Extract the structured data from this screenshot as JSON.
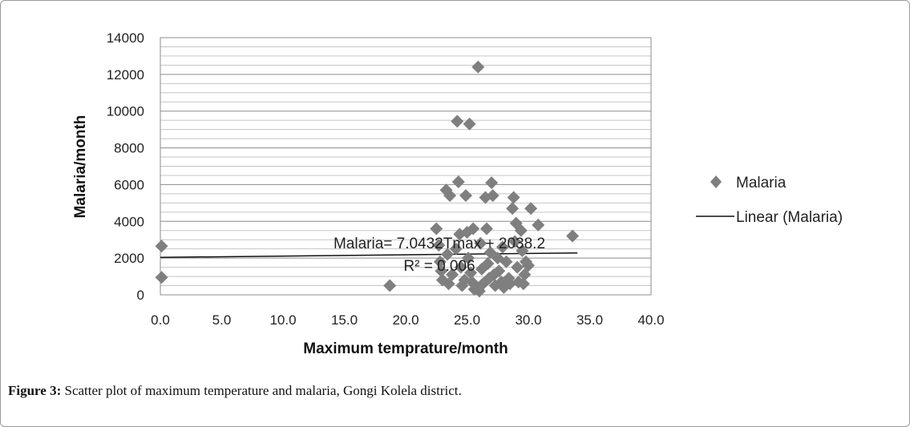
{
  "chart_data": {
    "type": "scatter",
    "xlabel": "Maximum temprature/month",
    "ylabel": "Malaria/month",
    "xlim": [
      0,
      40
    ],
    "ylim": [
      0,
      14000
    ],
    "x_ticks": [
      "0.0",
      "5.0",
      "10.0",
      "15.0",
      "20.0",
      "25.0",
      "30.0",
      "35.0",
      "40.0"
    ],
    "y_ticks": [
      "0",
      "2000",
      "4000",
      "6000",
      "8000",
      "10000",
      "12000",
      "14000"
    ],
    "grid": "horizontal",
    "legend_position": "right",
    "legend": {
      "series_label": "Malaria",
      "trend_label": "Linear (Malaria)"
    },
    "marker_color": "#7f7f7f",
    "series": [
      {
        "name": "Malaria",
        "points": [
          [
            0.1,
            2650
          ],
          [
            0.1,
            950
          ],
          [
            18.7,
            500
          ],
          [
            22.5,
            3600
          ],
          [
            22.7,
            2700
          ],
          [
            22.8,
            1800
          ],
          [
            23.0,
            800
          ],
          [
            22.9,
            1300
          ],
          [
            23.3,
            5700
          ],
          [
            23.6,
            5400
          ],
          [
            23.4,
            2200
          ],
          [
            23.5,
            600
          ],
          [
            23.8,
            1100
          ],
          [
            24.2,
            9450
          ],
          [
            24.3,
            6150
          ],
          [
            24.1,
            2500
          ],
          [
            24.4,
            3300
          ],
          [
            24.5,
            1500
          ],
          [
            24.6,
            500
          ],
          [
            24.8,
            800
          ],
          [
            24.9,
            5400
          ],
          [
            25.0,
            3400
          ],
          [
            25.1,
            2000
          ],
          [
            25.2,
            9300
          ],
          [
            25.3,
            1200
          ],
          [
            25.4,
            700
          ],
          [
            25.5,
            3600
          ],
          [
            25.6,
            300
          ],
          [
            25.8,
            400
          ],
          [
            25.9,
            12400
          ],
          [
            26.0,
            200
          ],
          [
            26.1,
            2800
          ],
          [
            26.2,
            1400
          ],
          [
            26.3,
            600
          ],
          [
            26.5,
            5300
          ],
          [
            26.6,
            3600
          ],
          [
            26.7,
            1700
          ],
          [
            26.8,
            900
          ],
          [
            26.9,
            2300
          ],
          [
            27.0,
            6100
          ],
          [
            27.1,
            5400
          ],
          [
            27.2,
            1100
          ],
          [
            27.3,
            500
          ],
          [
            27.5,
            2000
          ],
          [
            27.6,
            1300
          ],
          [
            27.8,
            700
          ],
          [
            27.9,
            2600
          ],
          [
            28.0,
            400
          ],
          [
            28.2,
            1800
          ],
          [
            28.4,
            900
          ],
          [
            28.5,
            600
          ],
          [
            28.7,
            4700
          ],
          [
            28.8,
            5300
          ],
          [
            28.9,
            2900
          ],
          [
            29.0,
            3900
          ],
          [
            29.1,
            1500
          ],
          [
            29.2,
            700
          ],
          [
            29.4,
            3500
          ],
          [
            29.5,
            2400
          ],
          [
            29.6,
            600
          ],
          [
            29.7,
            1100
          ],
          [
            29.8,
            1800
          ],
          [
            30.0,
            1600
          ],
          [
            30.2,
            4700
          ],
          [
            30.8,
            3800
          ],
          [
            33.6,
            3200
          ]
        ]
      }
    ],
    "trendline": {
      "name": "Linear (Malaria)",
      "slope": 7.0432,
      "intercept": 2038.2,
      "x_range": [
        0,
        34
      ],
      "equation_text": "Malaria= 7.0432Tmax + 2038.2",
      "r2_text": "R² = 0.006"
    }
  },
  "caption": {
    "label": "Figure 3:",
    "text": " Scatter plot of maximum temperature and malaria, Gongi Kolela district."
  }
}
